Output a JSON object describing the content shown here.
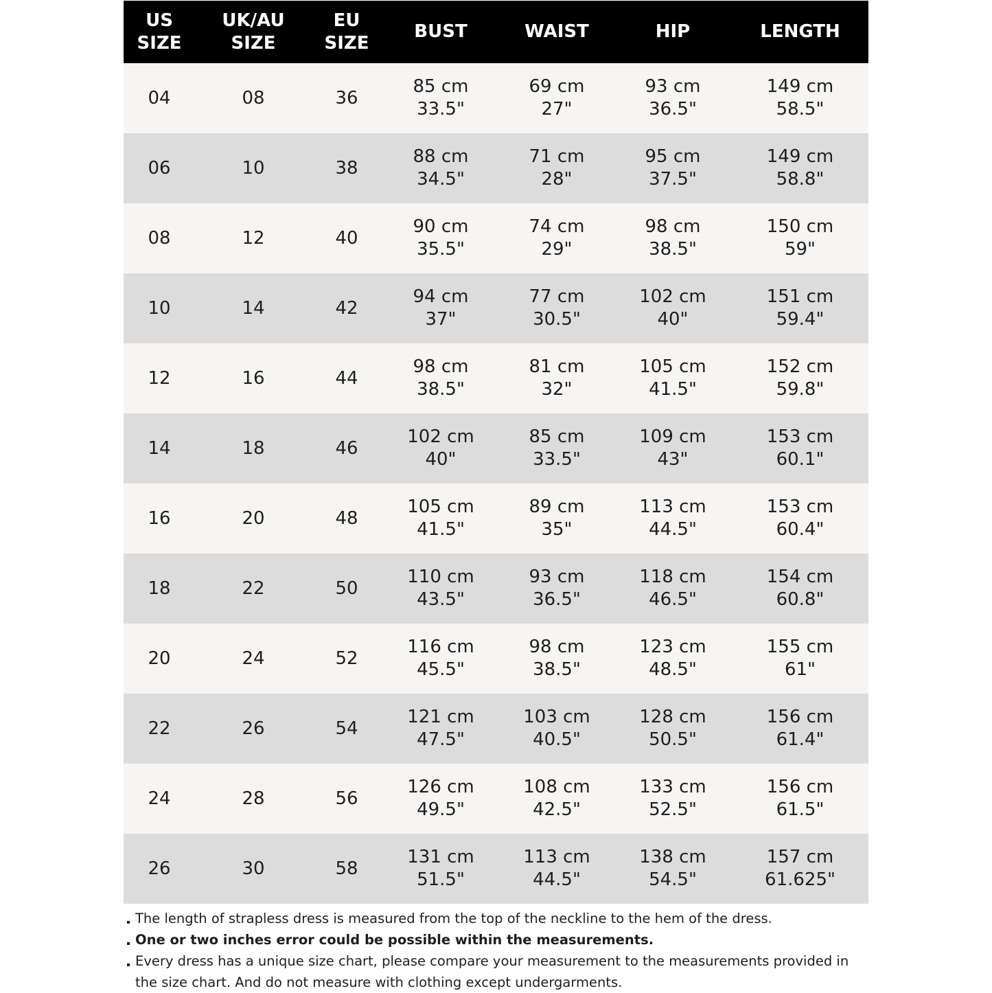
{
  "headers": [
    [
      "US",
      "SIZE"
    ],
    [
      "UK/AU",
      "SIZE"
    ],
    [
      "EU",
      "SIZE"
    ],
    [
      "BUST"
    ],
    [
      "WAIST"
    ],
    [
      "HIP"
    ],
    [
      "LENGTH"
    ]
  ],
  "rows": [
    [
      "04",
      "08",
      "36",
      [
        "85 cm",
        "33.5\""
      ],
      [
        "69 cm",
        "27\""
      ],
      [
        "93 cm",
        "36.5\""
      ],
      [
        "149 cm",
        "58.5\""
      ]
    ],
    [
      "06",
      "10",
      "38",
      [
        "88 cm",
        "34.5\""
      ],
      [
        "71 cm",
        "28\""
      ],
      [
        "95 cm",
        "37.5\""
      ],
      [
        "149 cm",
        "58.8\""
      ]
    ],
    [
      "08",
      "12",
      "40",
      [
        "90 cm",
        "35.5\""
      ],
      [
        "74 cm",
        "29\""
      ],
      [
        "98 cm",
        "38.5\""
      ],
      [
        "150 cm",
        "59\""
      ]
    ],
    [
      "10",
      "14",
      "42",
      [
        "94 cm",
        "37\""
      ],
      [
        "77 cm",
        "30.5\""
      ],
      [
        "102 cm",
        "40\""
      ],
      [
        "151 cm",
        "59.4\""
      ]
    ],
    [
      "12",
      "16",
      "44",
      [
        "98 cm",
        "38.5\""
      ],
      [
        "81 cm",
        "32\""
      ],
      [
        "105 cm",
        "41.5\""
      ],
      [
        "152 cm",
        "59.8\""
      ]
    ],
    [
      "14",
      "18",
      "46",
      [
        "102 cm",
        "40\""
      ],
      [
        "85 cm",
        "33.5\""
      ],
      [
        "109 cm",
        "43\""
      ],
      [
        "153 cm",
        "60.1\""
      ]
    ],
    [
      "16",
      "20",
      "48",
      [
        "105 cm",
        "41.5\""
      ],
      [
        "89 cm",
        "35\""
      ],
      [
        "113 cm",
        "44.5\""
      ],
      [
        "153 cm",
        "60.4\""
      ]
    ],
    [
      "18",
      "22",
      "50",
      [
        "110 cm",
        "43.5\""
      ],
      [
        "93 cm",
        "36.5\""
      ],
      [
        "118 cm",
        "46.5\""
      ],
      [
        "154 cm",
        "60.8\""
      ]
    ],
    [
      "20",
      "24",
      "52",
      [
        "116 cm",
        "45.5\""
      ],
      [
        "98 cm",
        "38.5\""
      ],
      [
        "123 cm",
        "48.5\""
      ],
      [
        "155 cm",
        "61\""
      ]
    ],
    [
      "22",
      "26",
      "54",
      [
        "121 cm",
        "47.5\""
      ],
      [
        "103 cm",
        "40.5\""
      ],
      [
        "128 cm",
        "50.5\""
      ],
      [
        "156 cm",
        "61.4\""
      ]
    ],
    [
      "24",
      "28",
      "56",
      [
        "126 cm",
        "49.5\""
      ],
      [
        "108 cm",
        "42.5\""
      ],
      [
        "133 cm",
        "52.5\""
      ],
      [
        "156 cm",
        "61.5\""
      ]
    ],
    [
      "26",
      "30",
      "58",
      [
        "131 cm",
        "51.5\""
      ],
      [
        "113 cm",
        "44.5\""
      ],
      [
        "138 cm",
        "54.5\""
      ],
      [
        "157 cm",
        "61.625\""
      ]
    ]
  ],
  "notes": [
    {
      "text": "The length of strapless dress is measured from the top of the neckline to the hem of the dress.",
      "bold": false
    },
    {
      "text": "One or two inches error could be possible within the measurements.",
      "bold": true
    },
    {
      "text": "Every dress has a unique size chart, please compare your measurement to the measurements provided in the size chart. And do not measure with clothing except undergarments.",
      "bold": false
    }
  ],
  "colors": {
    "header_bg": "#000000",
    "row_light": "#f6f5f3",
    "row_dark": "#dcdcdc"
  }
}
